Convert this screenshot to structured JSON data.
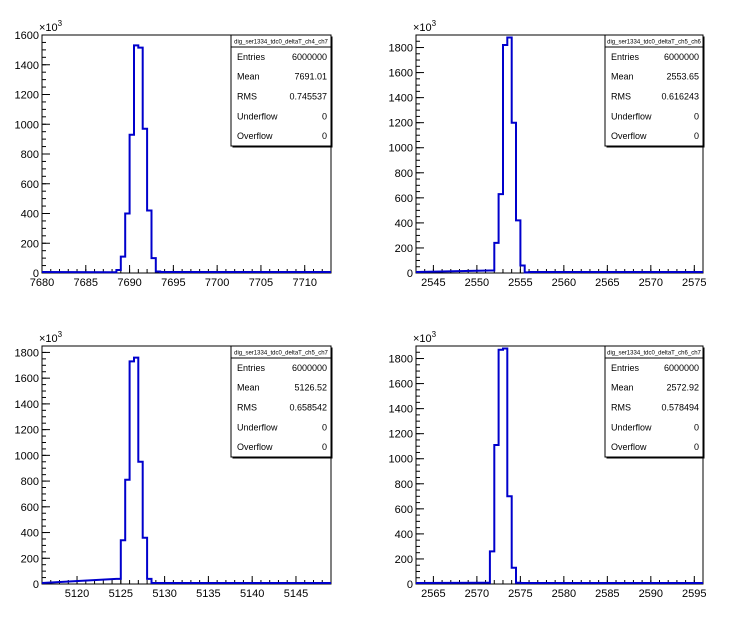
{
  "chart_data": [
    {
      "type": "histogram",
      "y_multiplier_label": "×10",
      "y_multiplier_exp": "3",
      "xlim": [
        7680,
        7713
      ],
      "ylim": [
        0,
        1600
      ],
      "x_ticks": [
        7680,
        7685,
        7690,
        7695,
        7700,
        7705,
        7710
      ],
      "y_ticks": [
        0,
        200,
        400,
        600,
        800,
        1000,
        1200,
        1400,
        1600
      ],
      "bins": [
        {
          "lo": 7688.0,
          "hi": 7688.5,
          "v": 5
        },
        {
          "lo": 7688.5,
          "hi": 7689.0,
          "v": 20
        },
        {
          "lo": 7689.0,
          "hi": 7689.5,
          "v": 110
        },
        {
          "lo": 7689.5,
          "hi": 7690.0,
          "v": 400
        },
        {
          "lo": 7690.0,
          "hi": 7690.5,
          "v": 930
        },
        {
          "lo": 7690.5,
          "hi": 7691.0,
          "v": 1530
        },
        {
          "lo": 7691.0,
          "hi": 7691.5,
          "v": 1515
        },
        {
          "lo": 7691.5,
          "hi": 7692.0,
          "v": 970
        },
        {
          "lo": 7692.0,
          "hi": 7692.5,
          "v": 420
        },
        {
          "lo": 7692.5,
          "hi": 7693.0,
          "v": 100
        },
        {
          "lo": 7693.0,
          "hi": 7693.5,
          "v": 10
        }
      ],
      "stats": {
        "title": "dig_ser1334_tdc0_deltaT_ch4_ch7",
        "rows": [
          {
            "label": "Entries",
            "value": "6000000"
          },
          {
            "label": "Mean",
            "value": "7691.01"
          },
          {
            "label": "RMS",
            "value": "0.745537"
          },
          {
            "label": "Underflow",
            "value": "0"
          },
          {
            "label": "Overflow",
            "value": "0"
          }
        ]
      }
    },
    {
      "type": "histogram",
      "y_multiplier_label": "×10",
      "y_multiplier_exp": "3",
      "xlim": [
        2543,
        2576
      ],
      "ylim": [
        0,
        1900
      ],
      "x_ticks": [
        2545,
        2550,
        2555,
        2560,
        2565,
        2570,
        2575
      ],
      "y_ticks": [
        0,
        200,
        400,
        600,
        800,
        1000,
        1200,
        1400,
        1600,
        1800
      ],
      "bins": [
        {
          "lo": 2551.5,
          "hi": 2552.0,
          "v": 20
        },
        {
          "lo": 2552.0,
          "hi": 2552.5,
          "v": 240
        },
        {
          "lo": 2552.5,
          "hi": 2553.0,
          "v": 630
        },
        {
          "lo": 2553.0,
          "hi": 2553.5,
          "v": 1820
        },
        {
          "lo": 2553.5,
          "hi": 2554.0,
          "v": 1880
        },
        {
          "lo": 2554.0,
          "hi": 2554.5,
          "v": 1200
        },
        {
          "lo": 2554.5,
          "hi": 2555.0,
          "v": 420
        },
        {
          "lo": 2555.0,
          "hi": 2555.5,
          "v": 60
        },
        {
          "lo": 2555.5,
          "hi": 2556.0,
          "v": 5
        }
      ],
      "stats": {
        "title": "dig_ser1334_tdc0_deltaT_ch5_ch6",
        "rows": [
          {
            "label": "Entries",
            "value": "6000000"
          },
          {
            "label": "Mean",
            "value": "2553.65"
          },
          {
            "label": "RMS",
            "value": "0.616243"
          },
          {
            "label": "Underflow",
            "value": "0"
          },
          {
            "label": "Overflow",
            "value": "0"
          }
        ]
      }
    },
    {
      "type": "histogram",
      "y_multiplier_label": "×10",
      "y_multiplier_exp": "3",
      "xlim": [
        5116,
        5149
      ],
      "ylim": [
        0,
        1850
      ],
      "x_ticks": [
        5120,
        5125,
        5130,
        5135,
        5140,
        5145
      ],
      "y_ticks": [
        0,
        200,
        400,
        600,
        800,
        1000,
        1200,
        1400,
        1600,
        1800
      ],
      "bins": [
        {
          "lo": 5124.5,
          "hi": 5125.0,
          "v": 40
        },
        {
          "lo": 5125.0,
          "hi": 5125.5,
          "v": 340
        },
        {
          "lo": 5125.5,
          "hi": 5126.0,
          "v": 810
        },
        {
          "lo": 5126.0,
          "hi": 5126.5,
          "v": 1730
        },
        {
          "lo": 5126.5,
          "hi": 5127.0,
          "v": 1760
        },
        {
          "lo": 5127.0,
          "hi": 5127.5,
          "v": 950
        },
        {
          "lo": 5127.5,
          "hi": 5128.0,
          "v": 360
        },
        {
          "lo": 5128.0,
          "hi": 5128.5,
          "v": 40
        }
      ],
      "stats": {
        "title": "dig_ser1334_tdc0_deltaT_ch5_ch7",
        "rows": [
          {
            "label": "Entries",
            "value": "6000000"
          },
          {
            "label": "Mean",
            "value": "5126.52"
          },
          {
            "label": "RMS",
            "value": "0.658542"
          },
          {
            "label": "Underflow",
            "value": "0"
          },
          {
            "label": "Overflow",
            "value": "0"
          }
        ]
      }
    },
    {
      "type": "histogram",
      "y_multiplier_label": "×10",
      "y_multiplier_exp": "3",
      "xlim": [
        2563,
        2596
      ],
      "ylim": [
        0,
        1900
      ],
      "x_ticks": [
        2565,
        2570,
        2575,
        2580,
        2585,
        2590,
        2595
      ],
      "y_ticks": [
        0,
        200,
        400,
        600,
        800,
        1000,
        1200,
        1400,
        1600,
        1800
      ],
      "bins": [
        {
          "lo": 2571.0,
          "hi": 2571.5,
          "v": 10
        },
        {
          "lo": 2571.5,
          "hi": 2572.0,
          "v": 260
        },
        {
          "lo": 2572.0,
          "hi": 2572.5,
          "v": 1110
        },
        {
          "lo": 2572.5,
          "hi": 2573.0,
          "v": 1870
        },
        {
          "lo": 2573.0,
          "hi": 2573.5,
          "v": 1880
        },
        {
          "lo": 2573.5,
          "hi": 2574.0,
          "v": 700
        },
        {
          "lo": 2574.0,
          "hi": 2574.5,
          "v": 130
        },
        {
          "lo": 2574.5,
          "hi": 2575.0,
          "v": 10
        }
      ],
      "stats": {
        "title": "dig_ser1334_tdc0_deltaT_ch6_ch7",
        "rows": [
          {
            "label": "Entries",
            "value": "6000000"
          },
          {
            "label": "Mean",
            "value": "2572.92"
          },
          {
            "label": "RMS",
            "value": "0.578494"
          },
          {
            "label": "Underflow",
            "value": "0"
          },
          {
            "label": "Overflow",
            "value": "0"
          }
        ]
      }
    }
  ],
  "colors": {
    "line": "#0000cc",
    "frame": "#000000",
    "background": "#ffffff"
  }
}
